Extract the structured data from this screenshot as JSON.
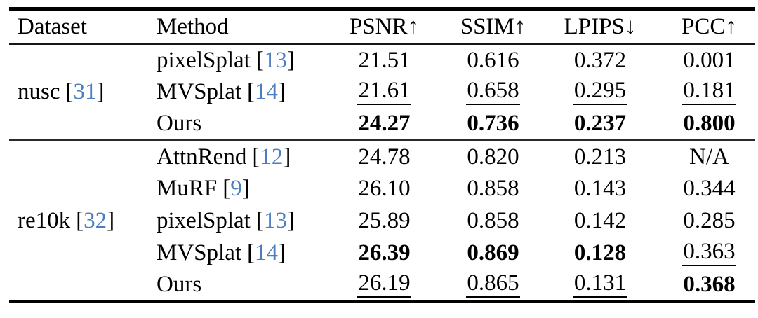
{
  "colors": {
    "citation": "#4b7dc0",
    "text": "#000000",
    "background": "#ffffff",
    "rule": "#000000"
  },
  "symbols": {
    "bracket_open": "[",
    "bracket_close": "]"
  },
  "header": {
    "dataset": "Dataset",
    "method": "Method",
    "metrics": [
      "PSNR↑",
      "SSIM↑",
      "LPIPS↓",
      "PCC↑"
    ]
  },
  "groups": [
    {
      "dataset": {
        "name": "nusc",
        "cite": "31"
      },
      "rows": [
        {
          "method": "pixelSplat",
          "cite": "13",
          "values": [
            {
              "text": "21.51",
              "style": "normal"
            },
            {
              "text": "0.616",
              "style": "normal"
            },
            {
              "text": "0.372",
              "style": "normal"
            },
            {
              "text": "0.001",
              "style": "normal"
            }
          ]
        },
        {
          "method": "MVSplat",
          "cite": "14",
          "values": [
            {
              "text": "21.61",
              "style": "underline"
            },
            {
              "text": "0.658",
              "style": "underline"
            },
            {
              "text": "0.295",
              "style": "underline"
            },
            {
              "text": "0.181",
              "style": "underline"
            }
          ]
        },
        {
          "method": "Ours",
          "cite": null,
          "values": [
            {
              "text": "24.27",
              "style": "bold"
            },
            {
              "text": "0.736",
              "style": "bold"
            },
            {
              "text": "0.237",
              "style": "bold"
            },
            {
              "text": "0.800",
              "style": "bold"
            }
          ]
        }
      ]
    },
    {
      "dataset": {
        "name": "re10k",
        "cite": "32"
      },
      "rows": [
        {
          "method": "AttnRend",
          "cite": "12",
          "values": [
            {
              "text": "24.78",
              "style": "normal"
            },
            {
              "text": "0.820",
              "style": "normal"
            },
            {
              "text": "0.213",
              "style": "normal"
            },
            {
              "text": "N/A",
              "style": "normal"
            }
          ]
        },
        {
          "method": "MuRF",
          "cite": "9",
          "values": [
            {
              "text": "26.10",
              "style": "normal"
            },
            {
              "text": "0.858",
              "style": "normal"
            },
            {
              "text": "0.143",
              "style": "normal"
            },
            {
              "text": "0.344",
              "style": "normal"
            }
          ]
        },
        {
          "method": "pixelSplat",
          "cite": "13",
          "values": [
            {
              "text": "25.89",
              "style": "normal"
            },
            {
              "text": "0.858",
              "style": "normal"
            },
            {
              "text": "0.142",
              "style": "normal"
            },
            {
              "text": "0.285",
              "style": "normal"
            }
          ]
        },
        {
          "method": "MVSplat",
          "cite": "14",
          "values": [
            {
              "text": "26.39",
              "style": "bold"
            },
            {
              "text": "0.869",
              "style": "bold"
            },
            {
              "text": "0.128",
              "style": "bold"
            },
            {
              "text": "0.363",
              "style": "underline"
            }
          ]
        },
        {
          "method": "Ours",
          "cite": null,
          "values": [
            {
              "text": "26.19",
              "style": "underline"
            },
            {
              "text": "0.865",
              "style": "underline"
            },
            {
              "text": "0.131",
              "style": "underline"
            },
            {
              "text": "0.368",
              "style": "bold"
            }
          ]
        }
      ]
    }
  ]
}
